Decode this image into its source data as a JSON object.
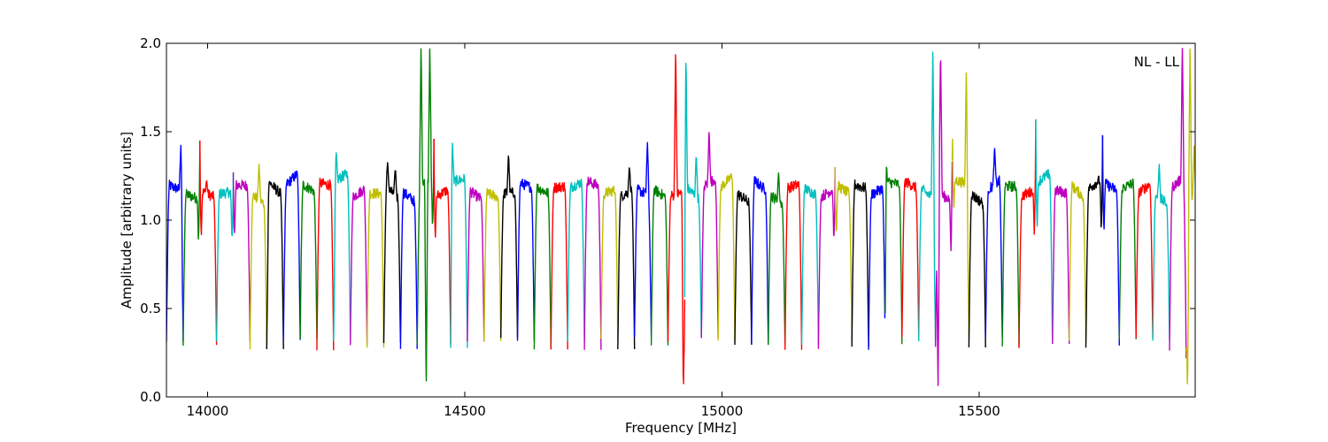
{
  "chart_data": {
    "type": "line",
    "title": "",
    "xlabel": "Frequency [MHz]",
    "ylabel": "Amplitude [arbitrary units]",
    "annotation": "NL - LL",
    "xlim": [
      13920,
      15920
    ],
    "ylim": [
      0.0,
      2.0
    ],
    "x_ticks": [
      14000,
      14500,
      15000,
      15500
    ],
    "x_tick_labels": [
      "14000",
      "14500",
      "15000",
      "15500"
    ],
    "y_ticks": [
      0.0,
      0.5,
      1.0,
      1.5,
      2.0
    ],
    "y_tick_labels": [
      "0.0",
      "0.5",
      "1.0",
      "1.5",
      "2.0"
    ],
    "grid": false,
    "color_cycle": [
      "#0000ff",
      "#008000",
      "#ff0000",
      "#00bfbf",
      "#bf00bf",
      "#bfbf00",
      "#000000"
    ],
    "channel": {
      "start_mhz": 13920,
      "width_mhz": 32.5,
      "count": 62,
      "edge_low": 0.3,
      "band_level": 1.18
    },
    "series": [
      {
        "peaks": [
          [
            13948,
            1.43
          ]
        ]
      },
      {
        "peaks": [
          [
            13985,
            1.45
          ]
        ]
      },
      {
        "peaks": [
          [
            13998,
            1.23
          ]
        ]
      },
      {
        "peaks": [
          [
            14050,
            1.27
          ]
        ]
      },
      {
        "peaks": [
          [
            14100,
            1.33
          ],
          [
            14120,
            1.22
          ]
        ]
      },
      {
        "peaks": [
          [
            14250,
            1.39
          ],
          [
            14350,
            1.33
          ],
          [
            14365,
            1.3
          ]
        ]
      },
      {
        "peaks": [
          [
            14415,
            2.0
          ],
          [
            14425,
            0.0
          ],
          [
            14432,
            2.0
          ],
          [
            14440,
            1.46
          ]
        ]
      },
      {
        "peaks": [
          [
            14476,
            1.46
          ],
          [
            14585,
            1.38
          ],
          [
            14820,
            1.31
          ],
          [
            14855,
            1.45
          ]
        ]
      },
      {
        "peaks": [
          [
            14910,
            2.0
          ],
          [
            14925,
            0.0
          ],
          [
            14930,
            2.0
          ],
          [
            14950,
            1.38
          ],
          [
            14975,
            1.52
          ]
        ]
      },
      {
        "peaks": [
          [
            15110,
            1.27
          ],
          [
            15220,
            1.3
          ],
          [
            15320,
            1.35
          ]
        ]
      },
      {
        "peaks": [
          [
            15410,
            2.0
          ],
          [
            15420,
            0.0
          ],
          [
            15425,
            2.0
          ],
          [
            15448,
            1.54
          ],
          [
            15475,
            1.87
          ]
        ]
      },
      {
        "peaks": [
          [
            15530,
            1.42
          ],
          [
            15610,
            1.57
          ],
          [
            15740,
            1.48
          ],
          [
            15850,
            1.32
          ]
        ]
      },
      {
        "peaks": [
          [
            15895,
            2.0
          ],
          [
            15905,
            0.0
          ],
          [
            15910,
            2.0
          ],
          [
            15918,
            1.42
          ]
        ]
      }
    ]
  }
}
